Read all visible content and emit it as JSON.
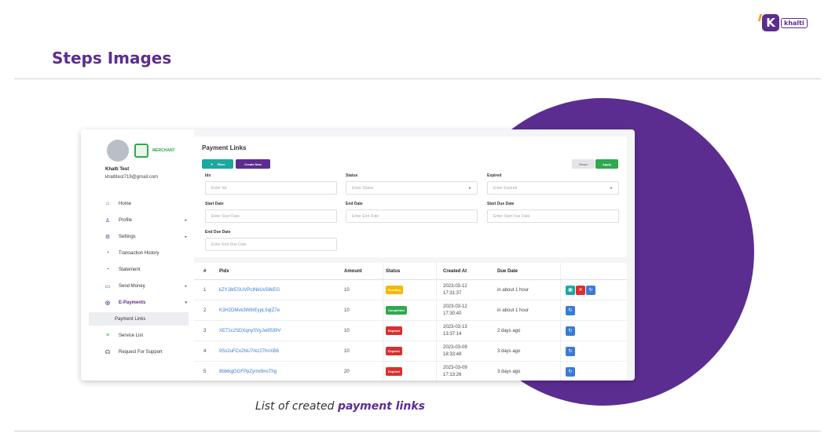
{
  "logo": {
    "mark": "K",
    "wordmark": "khalti"
  },
  "page_title": "Steps Images",
  "caption": {
    "prefix": "List of created ",
    "bold": "payment links"
  },
  "app": {
    "merchant_label": "MERCHANT",
    "user": {
      "name": "Khalti Test",
      "email": "khaltitest719@gmail.com"
    },
    "menu": [
      {
        "label": "Home",
        "icon": "home-icon",
        "glyph": "⌂",
        "arrow": ""
      },
      {
        "label": "Profile",
        "icon": "user-icon",
        "glyph": "♙",
        "arrow": "▸"
      },
      {
        "label": "Settings",
        "icon": "gear-icon",
        "glyph": "⚙",
        "arrow": "▸"
      },
      {
        "label": "Transaction History",
        "icon": "clock-icon",
        "glyph": "◔",
        "arrow": ""
      },
      {
        "label": "Statement",
        "icon": "statement-icon",
        "glyph": "◔",
        "arrow": ""
      },
      {
        "label": "Send Money",
        "icon": "wallet-icon",
        "glyph": "▭",
        "arrow": "▸"
      },
      {
        "label": "E-Payments",
        "icon": "epayment-icon",
        "glyph": "◎",
        "arrow": "▾"
      }
    ],
    "submenu": "Payment Links",
    "menu_after": [
      {
        "label": "Service List",
        "icon": "database-icon",
        "glyph": "≡"
      },
      {
        "label": "Request For Support",
        "icon": "headset-icon",
        "glyph": "☊"
      }
    ],
    "filter_card": {
      "title": "Payment Links",
      "filter_btn": "Filter",
      "create_btn": "Create New",
      "reset_btn": "Reset",
      "apply_btn": "Apply",
      "fields": {
        "idx": {
          "label": "Idx",
          "placeholder": "Enter Idx"
        },
        "status": {
          "label": "Status",
          "placeholder": "Enter Status"
        },
        "expired": {
          "label": "Expired",
          "placeholder": "Enter Expired"
        },
        "start_date": {
          "label": "Start Date",
          "placeholder": "Enter Start Date"
        },
        "end_date": {
          "label": "End Date",
          "placeholder": "Enter End Date"
        },
        "start_due": {
          "label": "Start Due Date",
          "placeholder": "Enter Start Due Date"
        },
        "end_due": {
          "label": "End Due Date",
          "placeholder": "Enter End Due Date"
        }
      }
    },
    "table": {
      "headers": [
        "#",
        "Pidx",
        "Amount",
        "Status",
        "Created At",
        "Due Date"
      ],
      "rows": [
        {
          "n": "1",
          "pidx": "kZYJ8rESUVPcINkUv59kEG",
          "amount": "10",
          "status": "Pending",
          "status_color": "#f5b800",
          "created": [
            "2023-03-12",
            "17:31:37"
          ],
          "due": "in about 1 hour"
        },
        {
          "n": "2",
          "pidx": "K3H2DMvk3W8rEypL5qtZ7e",
          "amount": "10",
          "status": "Completed",
          "status_color": "#2fa84f",
          "created": [
            "2023-03-12",
            "17:30:40"
          ],
          "due": "in about 1 hour"
        },
        {
          "n": "3",
          "pidx": "XETzc2SDXqnySVyJw9539V",
          "amount": "10",
          "status": "Expired",
          "status_color": "#d93030",
          "created": [
            "2023-03-13",
            "13:37:14"
          ],
          "due": "2 days ago"
        },
        {
          "n": "4",
          "pidx": "9Ss2uFCx2NU7rkz27hnXB6",
          "amount": "10",
          "status": "Expired",
          "status_color": "#d93030",
          "created": [
            "2023-03-09",
            "18:33:48"
          ],
          "due": "3 days ago"
        },
        {
          "n": "5",
          "pidx": "8bb6qjGGFPpZymx9nsThg",
          "amount": "20",
          "status": "Expired",
          "status_color": "#d93030",
          "created": [
            "2023-03-09",
            "17:13:26"
          ],
          "due": "3 days ago"
        }
      ]
    }
  }
}
